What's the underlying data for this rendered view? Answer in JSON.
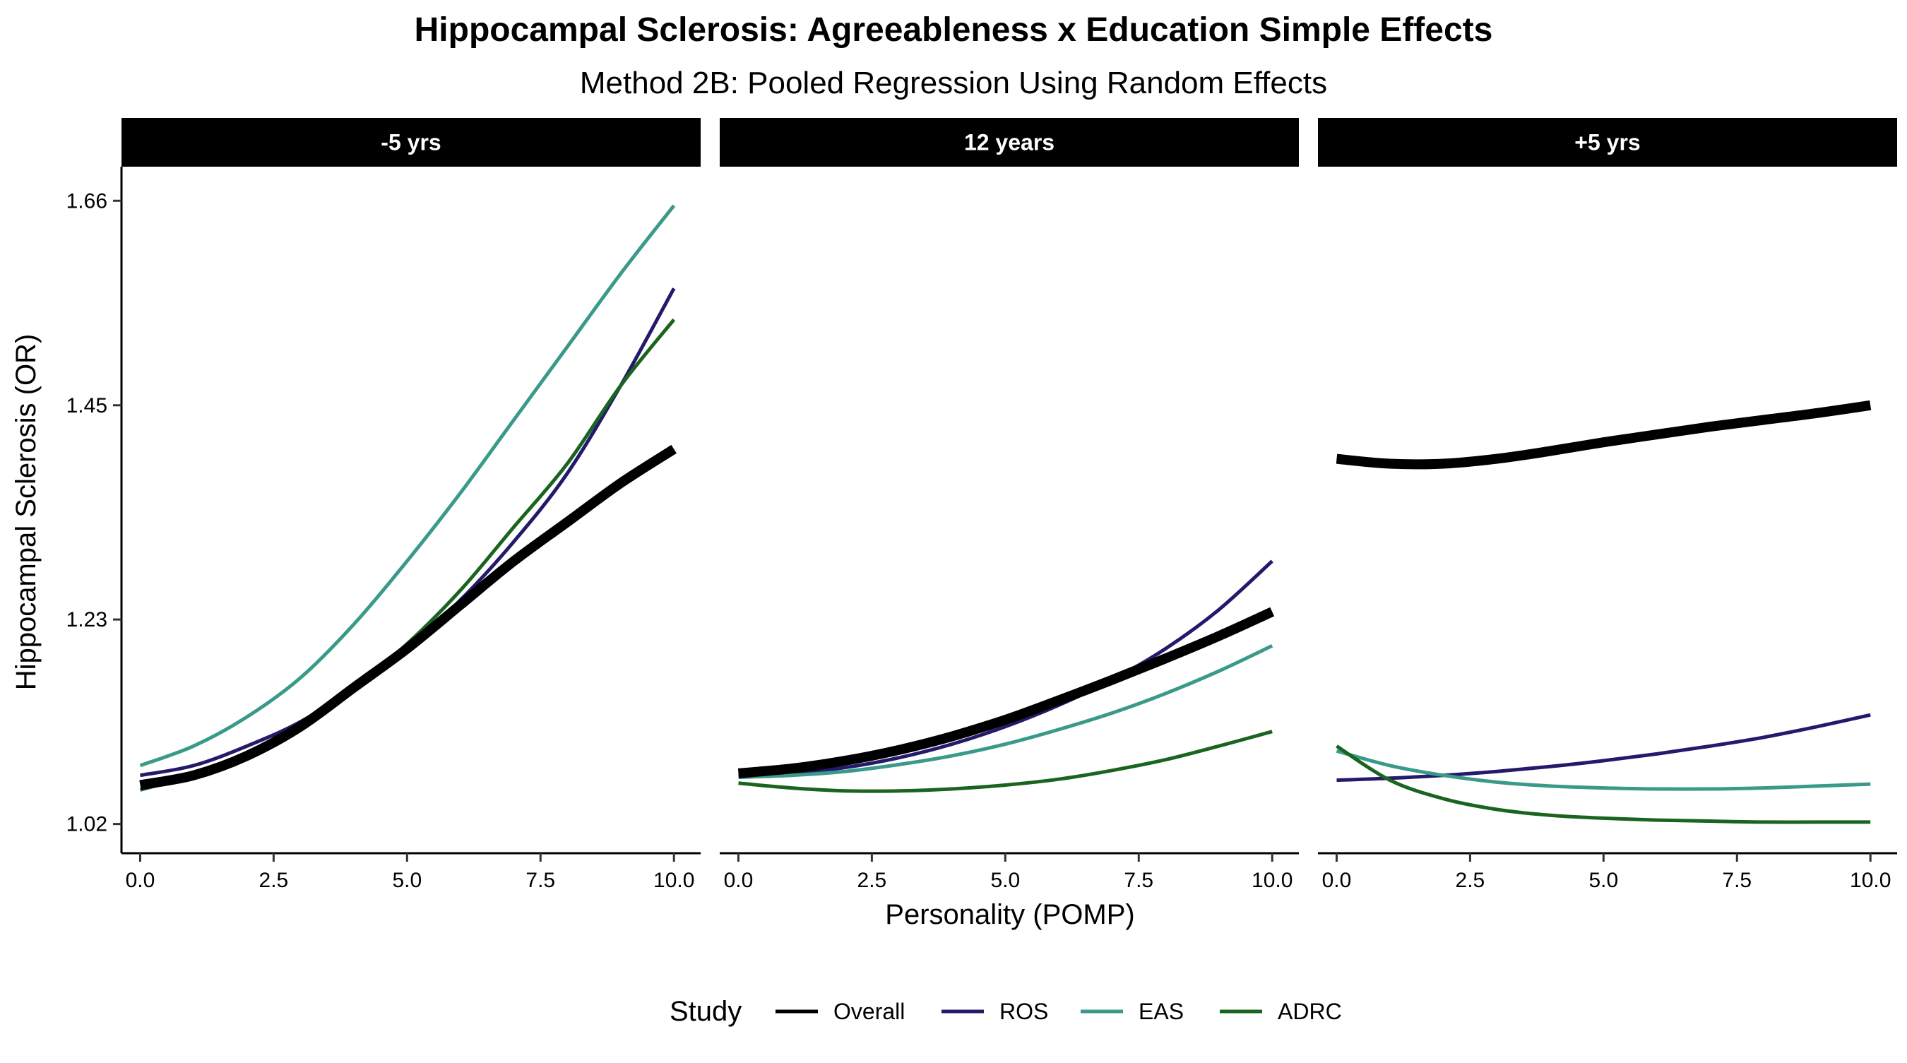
{
  "chart_data": {
    "type": "line",
    "title": "Hippocampal Sclerosis: Agreeableness x Education Simple Effects",
    "subtitle": "Method 2B: Pooled Regression Using Random Effects",
    "xlabel": "Personality (POMP)",
    "ylabel": "Hippocampal Sclerosis (OR)",
    "xlim": [
      -0.35,
      10.5
    ],
    "ylim": [
      0.99,
      1.695
    ],
    "x_ticks": [
      0,
      2.5,
      5,
      7.5,
      10
    ],
    "x_tick_labels": [
      "0.0",
      "2.5",
      "5.0",
      "7.5",
      "10.0"
    ],
    "y_ticks": [
      1.02,
      1.23,
      1.45,
      1.66
    ],
    "y_tick_labels": [
      "1.02",
      "1.23",
      "1.45",
      "1.66"
    ],
    "x": [
      0,
      1,
      2,
      3,
      4,
      5,
      6,
      7,
      8,
      9,
      10
    ],
    "grid": false,
    "legend": {
      "title": "Study",
      "position": "bottom",
      "entries": [
        "Overall",
        "ROS",
        "EAS",
        "ADRC"
      ]
    },
    "series_styles": [
      {
        "name": "Overall",
        "color": "#000000",
        "width": 14
      },
      {
        "name": "ROS",
        "color": "#231A6B",
        "width": 5
      },
      {
        "name": "EAS",
        "color": "#3A9A8A",
        "width": 5
      },
      {
        "name": "ADRC",
        "color": "#1B6420",
        "width": 5
      }
    ],
    "panels": [
      {
        "label": "-5 yrs",
        "series": [
          {
            "name": "Overall",
            "values": [
              1.06,
              1.07,
              1.09,
              1.12,
              1.16,
              1.2,
              1.245,
              1.29,
              1.33,
              1.37,
              1.405
            ]
          },
          {
            "name": "ROS",
            "values": [
              1.07,
              1.08,
              1.1,
              1.125,
              1.16,
              1.2,
              1.25,
              1.31,
              1.38,
              1.47,
              1.57
            ]
          },
          {
            "name": "EAS",
            "values": [
              1.08,
              1.1,
              1.13,
              1.17,
              1.225,
              1.29,
              1.36,
              1.435,
              1.51,
              1.585,
              1.655
            ]
          },
          {
            "name": "ADRC",
            "values": [
              1.055,
              1.07,
              1.09,
              1.12,
              1.16,
              1.205,
              1.26,
              1.325,
              1.39,
              1.47,
              1.538
            ]
          }
        ]
      },
      {
        "label": "12 years",
        "series": [
          {
            "name": "Overall",
            "values": [
              1.072,
              1.077,
              1.085,
              1.096,
              1.11,
              1.127,
              1.147,
              1.168,
              1.19,
              1.213,
              1.238
            ]
          },
          {
            "name": "ROS",
            "values": [
              1.07,
              1.072,
              1.078,
              1.088,
              1.102,
              1.12,
              1.142,
              1.168,
              1.2,
              1.24,
              1.29
            ]
          },
          {
            "name": "EAS",
            "values": [
              1.068,
              1.07,
              1.074,
              1.081,
              1.09,
              1.102,
              1.117,
              1.134,
              1.154,
              1.177,
              1.203
            ]
          },
          {
            "name": "ADRC",
            "values": [
              1.062,
              1.057,
              1.054,
              1.054,
              1.056,
              1.06,
              1.066,
              1.075,
              1.086,
              1.1,
              1.115
            ]
          }
        ]
      },
      {
        "label": "+5 yrs",
        "series": [
          {
            "name": "Overall",
            "values": [
              1.395,
              1.39,
              1.39,
              1.395,
              1.403,
              1.412,
              1.42,
              1.428,
              1.435,
              1.442,
              1.45
            ]
          },
          {
            "name": "ROS",
            "values": [
              1.065,
              1.067,
              1.07,
              1.074,
              1.079,
              1.085,
              1.092,
              1.1,
              1.109,
              1.12,
              1.132
            ]
          },
          {
            "name": "EAS",
            "values": [
              1.095,
              1.08,
              1.07,
              1.063,
              1.059,
              1.057,
              1.056,
              1.056,
              1.057,
              1.059,
              1.061
            ]
          },
          {
            "name": "ADRC",
            "values": [
              1.1,
              1.065,
              1.046,
              1.035,
              1.029,
              1.026,
              1.024,
              1.023,
              1.022,
              1.022,
              1.022
            ]
          }
        ]
      }
    ]
  }
}
